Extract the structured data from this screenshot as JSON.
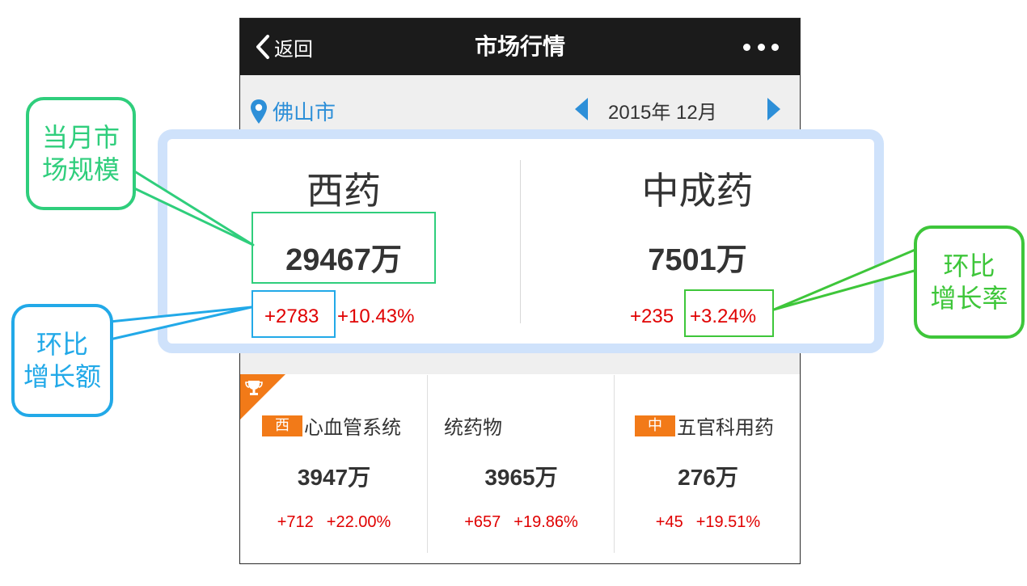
{
  "nav": {
    "back_label": "返回",
    "title": "市场行情",
    "more_icon": "more-dots-icon"
  },
  "location": {
    "city": "佛山市",
    "date": "2015年 12月"
  },
  "summary": {
    "western": {
      "title": "西药",
      "amount": "29467万",
      "delta_abs": "+2783",
      "delta_pct": "+10.43%"
    },
    "chinese": {
      "title": "中成药",
      "amount": "7501万",
      "delta_abs": "+235",
      "delta_pct": "+3.24%"
    }
  },
  "categories": [
    {
      "badge": "西",
      "name": "心血管系统",
      "amount": "3947万",
      "delta_abs": "+712",
      "delta_pct": "+22.00%"
    },
    {
      "badge": "",
      "name": "统药物",
      "amount": "3965万",
      "delta_abs": "+657",
      "delta_pct": "+19.86%"
    },
    {
      "badge": "中",
      "name": "五官科用药",
      "amount": "276万",
      "delta_abs": "+45",
      "delta_pct": "+19.51%"
    }
  ],
  "annotations": {
    "market_size": {
      "line1": "当月市",
      "line2": "场规模"
    },
    "mom_amount": {
      "line1": "环比",
      "line2": "增长额"
    },
    "mom_rate": {
      "line1": "环比",
      "line2": "增长率"
    }
  },
  "colors": {
    "nav_bg": "#1b1b1b",
    "accent_blue": "#2d8fd8",
    "increase_red": "#e00000",
    "badge_orange": "#f27a18",
    "callout_teal": "#2fce7c",
    "callout_blue": "#22a9e8",
    "callout_green": "#3ec63a",
    "panel_highlight": "#cfe2fb"
  }
}
